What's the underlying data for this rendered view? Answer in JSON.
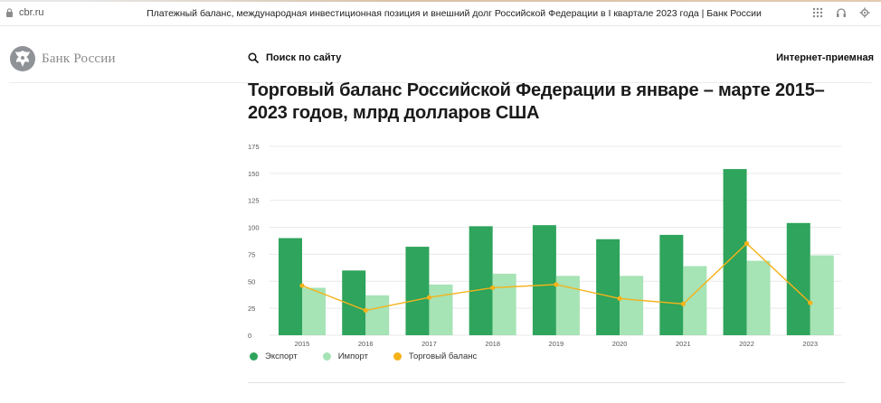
{
  "browser": {
    "url": "cbr.ru",
    "tab_title": "Платежный баланс, международная инвестиционная позиция и внешний долг Российской Федерации в I квартале 2023 года | Банк России",
    "icons": [
      "lock-icon",
      "grid-icon",
      "headphones-icon",
      "settings-icon"
    ]
  },
  "header": {
    "logo_text": "Банк России",
    "search_label": "Поиск по сайту",
    "reception_label": "Интернет-приемная"
  },
  "colors": {
    "export": "#2ea45c",
    "import": "#a6e3b5",
    "balance": "#f5b21a",
    "grid": "#e9e9e9"
  },
  "chart_data": {
    "type": "bar",
    "title": "Торговый баланс Российской Федерации в январе – марте 2015–2023 годов, млрд долларов США",
    "categories": [
      "2015",
      "2016",
      "2017",
      "2018",
      "2019",
      "2020",
      "2021",
      "2022",
      "2023"
    ],
    "series": [
      {
        "name": "Экспорт",
        "type": "bar",
        "values": [
          90,
          60,
          82,
          101,
          102,
          89,
          93,
          154,
          104
        ]
      },
      {
        "name": "Импорт",
        "type": "bar",
        "values": [
          44,
          37,
          47,
          57,
          55,
          55,
          64,
          69,
          74
        ]
      },
      {
        "name": "Торговый баланс",
        "type": "line",
        "values": [
          46,
          23,
          35,
          44,
          47,
          34,
          29,
          85,
          30
        ]
      }
    ],
    "yticks": [
      "0",
      "25",
      "50",
      "75",
      "100",
      "125",
      "150",
      "175"
    ],
    "ylim": [
      0,
      175
    ],
    "xlabel": "",
    "ylabel": "",
    "grid": true,
    "legend_position": "bottom-left"
  }
}
